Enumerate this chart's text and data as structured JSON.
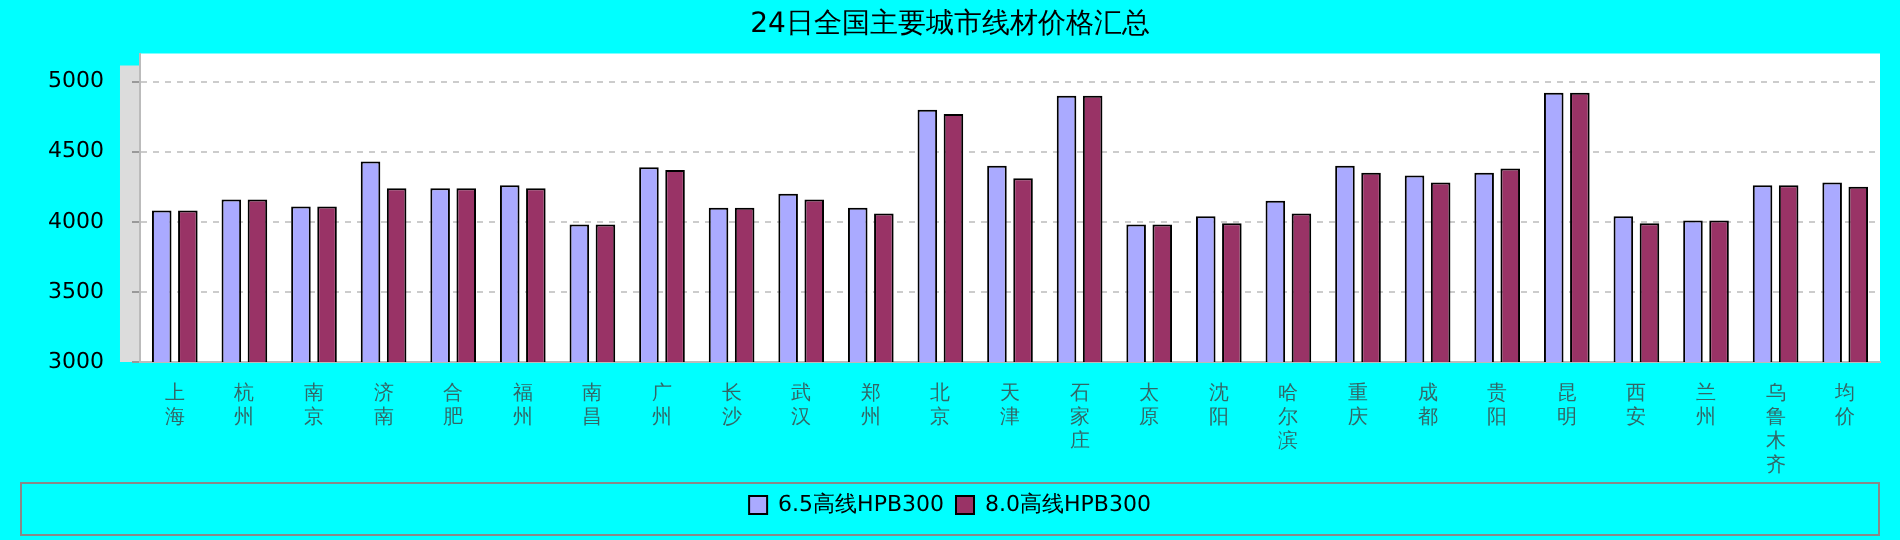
{
  "chart_data": {
    "type": "bar",
    "title": "24日全国主要城市线材价格汇总",
    "categories": [
      "上海",
      "杭州",
      "南京",
      "济南",
      "合肥",
      "福州",
      "南昌",
      "广州",
      "长沙",
      "武汉",
      "郑州",
      "北京",
      "天津",
      "石家庄",
      "太原",
      "沈阳",
      "哈尔滨",
      "重庆",
      "成都",
      "贵阳",
      "昆明",
      "西安",
      "兰州",
      "乌鲁木齐",
      "均价"
    ],
    "series": [
      {
        "name": "6.5高线HPB300",
        "color": "#aaaaff",
        "values": [
          4080,
          4160,
          4110,
          4430,
          4240,
          4260,
          3980,
          4390,
          4100,
          4200,
          4100,
          4800,
          4400,
          4900,
          3980,
          4040,
          4150,
          4400,
          4330,
          4350,
          4920,
          4040,
          4010,
          4260,
          4280
        ]
      },
      {
        "name": "8.0高线HPB300",
        "color": "#993366",
        "values": [
          4080,
          4160,
          4110,
          4240,
          4240,
          4240,
          3980,
          4370,
          4100,
          4160,
          4060,
          4770,
          4310,
          4900,
          3980,
          3990,
          4060,
          4350,
          4280,
          4380,
          4920,
          3990,
          4010,
          4260,
          4250
        ]
      }
    ],
    "ylim": [
      3000,
      5200
    ],
    "yticks": [
      3000,
      3500,
      4000,
      4500,
      5000
    ],
    "grid": "y",
    "legend": "bottom"
  }
}
